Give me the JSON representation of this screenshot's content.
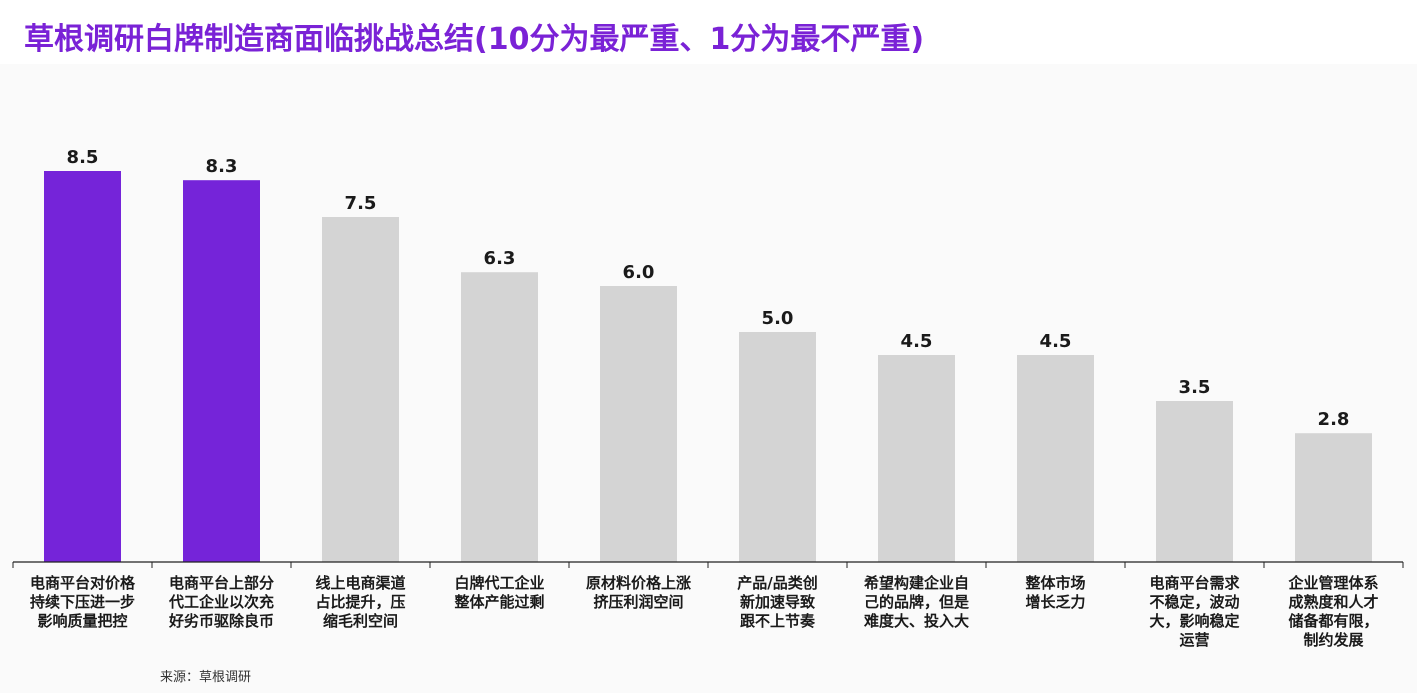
{
  "title": "草根调研白牌制造商面临挑战总结(10分为最严重、1分为最不严重)",
  "source": "来源：草根调研",
  "colors": {
    "title": "#7a22d6",
    "highlight": "#7524d9",
    "default": "#d4d4d4",
    "axis": "#222222",
    "label": "#1a1a1a"
  },
  "chart_data": {
    "type": "bar",
    "title": "草根调研白牌制造商面临挑战总结(10分为最严重、1分为最不严重)",
    "xlabel": "",
    "ylabel": "",
    "ylim": [
      0,
      10
    ],
    "grid": false,
    "highlight_indices": [
      0,
      1
    ],
    "categories": [
      [
        "电商平台对价格",
        "持续下压进一步",
        "影响质量把控"
      ],
      [
        "电商平台上部分",
        "代工企业以次充",
        "好劣币驱除良币"
      ],
      [
        "线上电商渠道",
        "占比提升，压",
        "缩毛利空间"
      ],
      [
        "白牌代工企业",
        "整体产能过剩"
      ],
      [
        "原材料价格上涨",
        "挤压利润空间"
      ],
      [
        "产品/品类创",
        "新加速导致",
        "跟不上节奏"
      ],
      [
        "希望构建企业自",
        "己的品牌，但是",
        "难度大、投入大"
      ],
      [
        "整体市场",
        "增长乏力"
      ],
      [
        "电商平台需求",
        "不稳定，波动",
        "大，影响稳定",
        "运营"
      ],
      [
        "企业管理体系",
        "成熟度和人才",
        "储备都有限，",
        "制约发展"
      ]
    ],
    "values": [
      8.5,
      8.3,
      7.5,
      6.3,
      6.0,
      5.0,
      4.5,
      4.5,
      3.5,
      2.8
    ],
    "value_labels": [
      "8.5",
      "8.3",
      "7.5",
      "6.3",
      "6.0",
      "5.0",
      "4.5",
      "4.5",
      "3.5",
      "2.8"
    ]
  }
}
